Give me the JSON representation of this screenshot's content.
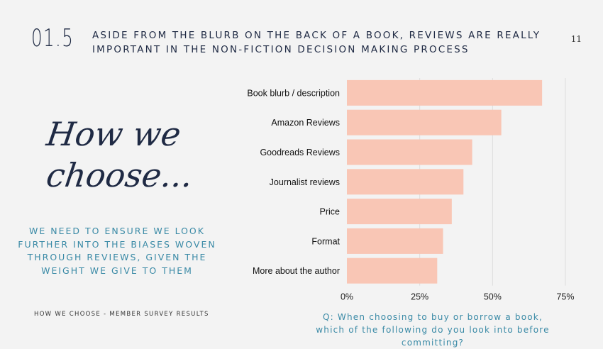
{
  "header": {
    "section_number": "01.5",
    "headline_line1": "Aside from the blurb on the back of a book, reviews are really",
    "headline_line2": "important in the non-fiction decision making process",
    "page_number": "11"
  },
  "left_panel": {
    "script_line1": "How we",
    "script_line2": "choose...",
    "insight_line1": "We need to ensure we look",
    "insight_line2": "further into the biases woven",
    "insight_line3": "through reviews, given the",
    "insight_line4": "weight we give to them"
  },
  "footer": {
    "left_label": "How we choose - member survey results",
    "question_line1": "Q: When choosing to buy or borrow a book,",
    "question_line2": "which of the following do you look into before committing?"
  },
  "chart_data": {
    "type": "bar",
    "orientation": "horizontal",
    "categories": [
      "Book blurb / description",
      "Amazon Reviews",
      "Goodreads Reviews",
      "Journalist reviews",
      "Price",
      "Format",
      "More about the author"
    ],
    "values": [
      67,
      53,
      43,
      40,
      36,
      33,
      31
    ],
    "x_ticks": [
      "0%",
      "25%",
      "50%",
      "75%"
    ],
    "xlim": [
      0,
      75
    ],
    "grid": true,
    "bar_color": "#f9c6b5",
    "grid_color": "#dcdcdc"
  }
}
